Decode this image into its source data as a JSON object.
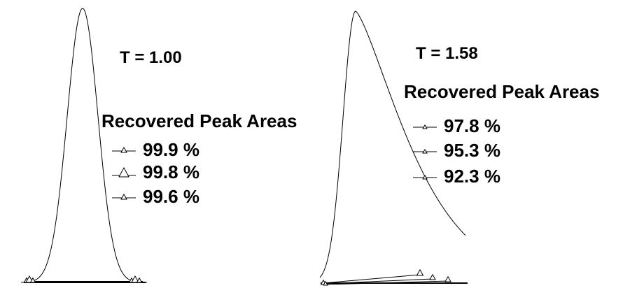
{
  "chart_data": [
    {
      "type": "line",
      "title": "T = 1.00",
      "legend_title": "Recovered Peak Areas",
      "legend_placement": "right",
      "series": [
        {
          "name": "99.9 %",
          "marker": "small-triangle"
        },
        {
          "name": "99.8 %",
          "marker": "large-triangle"
        },
        {
          "name": "99.6 %",
          "marker": "small-triangle"
        }
      ],
      "grid": false,
      "axes_visible": false,
      "peak_shape": "symmetric"
    },
    {
      "type": "line",
      "title": "T = 1.58",
      "legend_title": "Recovered Peak Areas",
      "legend_placement": "right",
      "series": [
        {
          "name": "97.8 %",
          "marker": "small-triangle"
        },
        {
          "name": "95.3 %",
          "marker": "small-triangle"
        },
        {
          "name": "92.3 %",
          "marker": "small-triangle"
        }
      ],
      "grid": false,
      "axes_visible": false,
      "peak_shape": "tailing"
    }
  ],
  "colors": {
    "line": "#000000",
    "background": "#ffffff"
  }
}
